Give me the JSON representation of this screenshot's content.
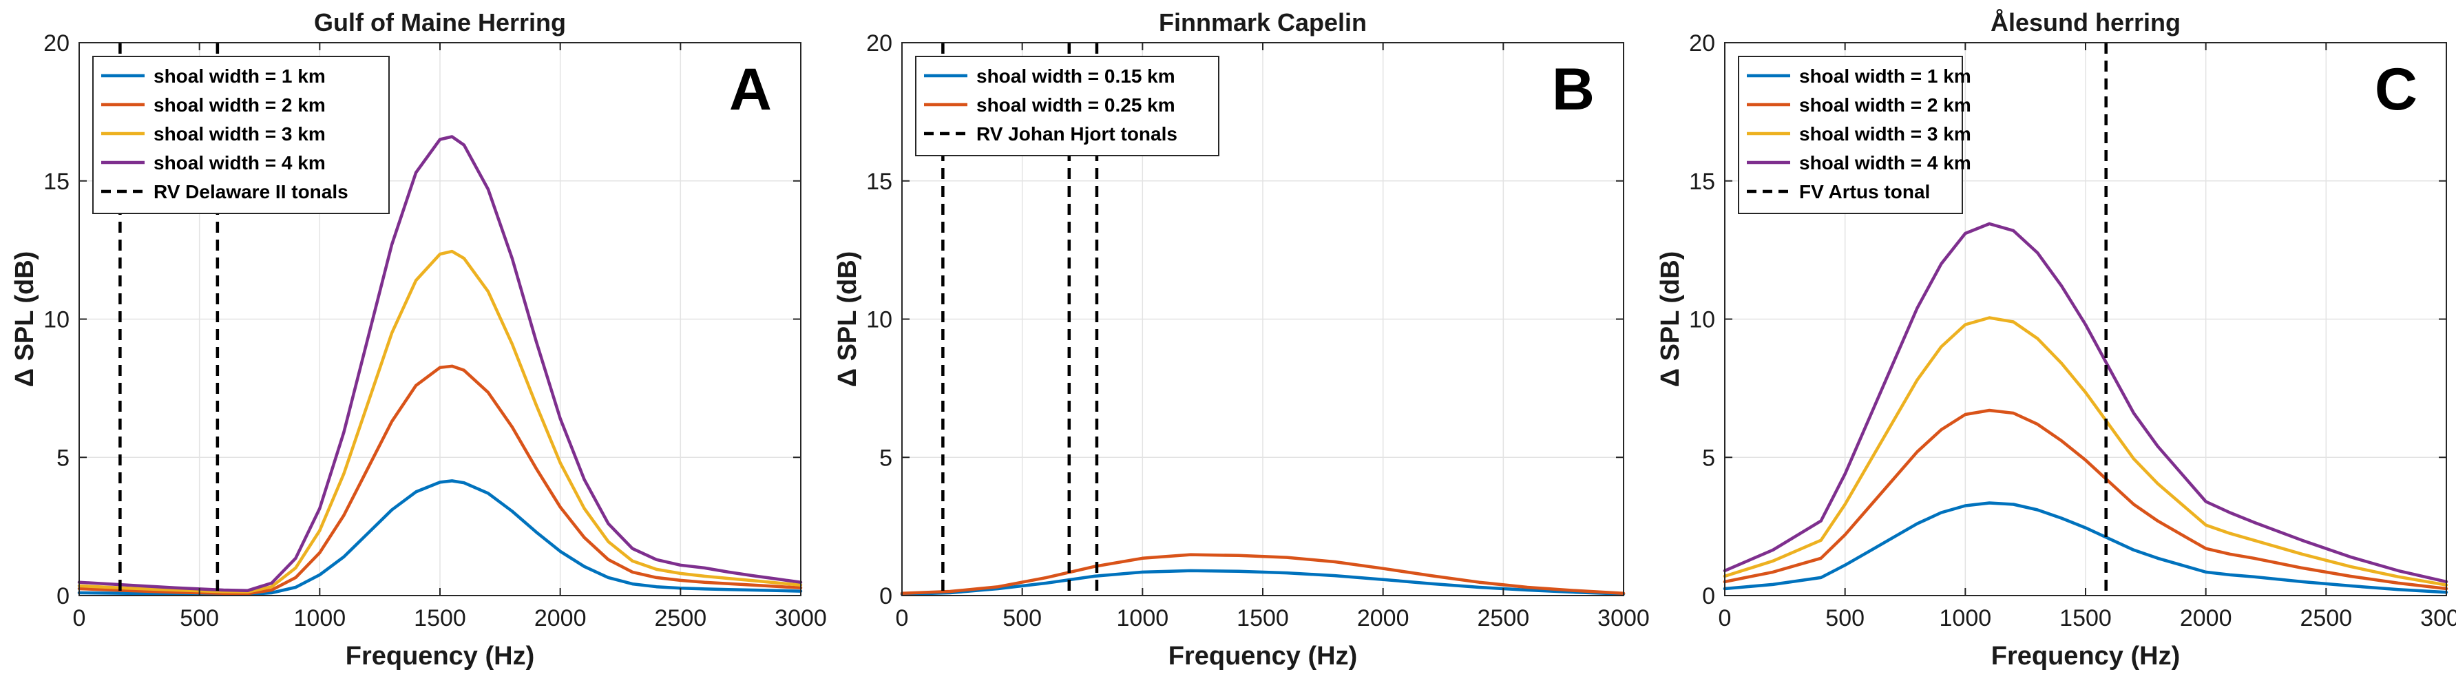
{
  "chart_data": [
    {
      "type": "line",
      "panel": "A",
      "title": "Gulf of Maine Herring",
      "xlabel": "Frequency (Hz)",
      "ylabel": "Δ SPL (dB)",
      "xlim": [
        0,
        3000
      ],
      "ylim": [
        0,
        20
      ],
      "xticks": [
        "0",
        "500",
        "1000",
        "1500",
        "2000",
        "2500",
        "3000"
      ],
      "yticks": [
        "0",
        "5",
        "10",
        "15",
        "20"
      ],
      "grid": true,
      "legend_position": "top-left",
      "vlines": {
        "label": "RV Delaware II tonals",
        "x": [
          170,
          575
        ]
      },
      "series": [
        {
          "name": "shoal width = 1 km",
          "color": "#0072BD",
          "x": [
            0,
            200,
            400,
            600,
            700,
            800,
            900,
            1000,
            1100,
            1200,
            1300,
            1400,
            1500,
            1550,
            1600,
            1700,
            1800,
            1900,
            2000,
            2100,
            2200,
            2300,
            2400,
            2500,
            2600,
            2700,
            2800,
            2900,
            3000
          ],
          "y": [
            0.1,
            0.08,
            0.06,
            0.04,
            0.04,
            0.1,
            0.3,
            0.75,
            1.4,
            2.25,
            3.1,
            3.75,
            4.1,
            4.15,
            4.08,
            3.7,
            3.05,
            2.3,
            1.6,
            1.05,
            0.65,
            0.42,
            0.32,
            0.27,
            0.24,
            0.22,
            0.2,
            0.18,
            0.16
          ]
        },
        {
          "name": "shoal width = 2 km",
          "color": "#D95319",
          "x": [
            0,
            200,
            400,
            600,
            700,
            800,
            900,
            1000,
            1100,
            1200,
            1300,
            1400,
            1500,
            1550,
            1600,
            1700,
            1800,
            1900,
            2000,
            2100,
            2200,
            2300,
            2400,
            2500,
            2600,
            2700,
            2800,
            2900,
            3000
          ],
          "y": [
            0.25,
            0.18,
            0.12,
            0.08,
            0.07,
            0.2,
            0.65,
            1.55,
            2.9,
            4.6,
            6.3,
            7.6,
            8.25,
            8.3,
            8.15,
            7.35,
            6.1,
            4.6,
            3.2,
            2.1,
            1.3,
            0.85,
            0.65,
            0.55,
            0.48,
            0.43,
            0.38,
            0.33,
            0.28
          ]
        },
        {
          "name": "shoal width = 3 km",
          "color": "#EDB120",
          "x": [
            0,
            200,
            400,
            600,
            700,
            800,
            900,
            1000,
            1100,
            1200,
            1300,
            1400,
            1500,
            1550,
            1600,
            1700,
            1800,
            1900,
            2000,
            2100,
            2200,
            2300,
            2400,
            2500,
            2600,
            2700,
            2800,
            2900,
            3000
          ],
          "y": [
            0.35,
            0.27,
            0.2,
            0.14,
            0.13,
            0.32,
            1.0,
            2.35,
            4.4,
            6.95,
            9.5,
            11.4,
            12.35,
            12.45,
            12.2,
            11.0,
            9.1,
            6.9,
            4.8,
            3.15,
            1.95,
            1.25,
            0.95,
            0.8,
            0.7,
            0.62,
            0.54,
            0.46,
            0.38
          ]
        },
        {
          "name": "shoal width = 4 km",
          "color": "#7E2F8E",
          "x": [
            0,
            200,
            400,
            600,
            700,
            800,
            900,
            1000,
            1100,
            1200,
            1300,
            1400,
            1500,
            1550,
            1600,
            1700,
            1800,
            1900,
            2000,
            2100,
            2200,
            2300,
            2400,
            2500,
            2600,
            2700,
            2800,
            2900,
            3000
          ],
          "y": [
            0.48,
            0.38,
            0.28,
            0.2,
            0.18,
            0.45,
            1.35,
            3.15,
            5.9,
            9.3,
            12.7,
            15.3,
            16.5,
            16.6,
            16.3,
            14.7,
            12.2,
            9.2,
            6.4,
            4.2,
            2.6,
            1.7,
            1.3,
            1.1,
            1.0,
            0.85,
            0.72,
            0.6,
            0.48
          ]
        }
      ]
    },
    {
      "type": "line",
      "panel": "B",
      "title": "Finnmark Capelin",
      "xlabel": "Frequency (Hz)",
      "ylabel": "Δ SPL (dB)",
      "xlim": [
        0,
        3000
      ],
      "ylim": [
        0,
        20
      ],
      "xticks": [
        "0",
        "500",
        "1000",
        "1500",
        "2000",
        "2500",
        "3000"
      ],
      "yticks": [
        "0",
        "5",
        "10",
        "15",
        "20"
      ],
      "grid": true,
      "legend_position": "top-left",
      "vlines": {
        "label": "RV Johan Hjort tonals",
        "x": [
          170,
          695,
          810
        ]
      },
      "series": [
        {
          "name": "shoal width = 0.15 km",
          "color": "#0072BD",
          "x": [
            0,
            200,
            400,
            600,
            800,
            1000,
            1200,
            1400,
            1600,
            1800,
            2000,
            2200,
            2400,
            2600,
            2800,
            3000
          ],
          "y": [
            0.05,
            0.1,
            0.25,
            0.45,
            0.7,
            0.85,
            0.9,
            0.88,
            0.82,
            0.72,
            0.58,
            0.43,
            0.3,
            0.2,
            0.12,
            0.06
          ]
        },
        {
          "name": "shoal width = 0.25 km",
          "color": "#D95319",
          "x": [
            0,
            200,
            400,
            600,
            800,
            1000,
            1200,
            1400,
            1600,
            1800,
            2000,
            2200,
            2400,
            2600,
            2800,
            3000
          ],
          "y": [
            0.08,
            0.15,
            0.32,
            0.65,
            1.05,
            1.35,
            1.48,
            1.45,
            1.38,
            1.22,
            0.98,
            0.72,
            0.48,
            0.3,
            0.18,
            0.08
          ]
        }
      ]
    },
    {
      "type": "line",
      "panel": "C",
      "title": "Ålesund herring",
      "xlabel": "Frequency (Hz)",
      "ylabel": "Δ SPL (dB)",
      "xlim": [
        0,
        3000
      ],
      "ylim": [
        0,
        20
      ],
      "xticks": [
        "0",
        "500",
        "1000",
        "1500",
        "2000",
        "2500",
        "3000"
      ],
      "yticks": [
        "0",
        "5",
        "10",
        "15",
        "20"
      ],
      "grid": true,
      "legend_position": "top-left",
      "vlines": {
        "label": "FV Artus tonal",
        "x": [
          1585
        ]
      },
      "series": [
        {
          "name": "shoal width = 1 km",
          "color": "#0072BD",
          "x": [
            0,
            200,
            400,
            500,
            600,
            700,
            800,
            900,
            1000,
            1100,
            1200,
            1300,
            1400,
            1500,
            1600,
            1700,
            1800,
            1900,
            2000,
            2100,
            2200,
            2400,
            2600,
            2800,
            3000
          ],
          "y": [
            0.25,
            0.4,
            0.65,
            1.1,
            1.6,
            2.1,
            2.6,
            3.0,
            3.25,
            3.35,
            3.3,
            3.1,
            2.8,
            2.45,
            2.05,
            1.65,
            1.35,
            1.1,
            0.85,
            0.75,
            0.68,
            0.5,
            0.35,
            0.22,
            0.12
          ]
        },
        {
          "name": "shoal width = 2 km",
          "color": "#D95319",
          "x": [
            0,
            200,
            400,
            500,
            600,
            700,
            800,
            900,
            1000,
            1100,
            1200,
            1300,
            1400,
            1500,
            1600,
            1700,
            1800,
            1900,
            2000,
            2100,
            2200,
            2400,
            2600,
            2800,
            3000
          ],
          "y": [
            0.5,
            0.85,
            1.35,
            2.2,
            3.2,
            4.2,
            5.2,
            6.0,
            6.55,
            6.7,
            6.6,
            6.2,
            5.6,
            4.9,
            4.1,
            3.3,
            2.7,
            2.2,
            1.7,
            1.5,
            1.35,
            1.0,
            0.7,
            0.45,
            0.25
          ]
        },
        {
          "name": "shoal width = 3 km",
          "color": "#EDB120",
          "x": [
            0,
            200,
            400,
            500,
            600,
            700,
            800,
            900,
            1000,
            1100,
            1200,
            1300,
            1400,
            1500,
            1600,
            1700,
            1800,
            1900,
            2000,
            2100,
            2200,
            2400,
            2600,
            2800,
            3000
          ],
          "y": [
            0.7,
            1.25,
            2.0,
            3.3,
            4.8,
            6.3,
            7.8,
            9.0,
            9.8,
            10.05,
            9.9,
            9.3,
            8.4,
            7.35,
            6.15,
            4.95,
            4.05,
            3.3,
            2.55,
            2.25,
            2.0,
            1.5,
            1.05,
            0.68,
            0.38
          ]
        },
        {
          "name": "shoal width = 4 km",
          "color": "#7E2F8E",
          "x": [
            0,
            200,
            400,
            500,
            600,
            700,
            800,
            900,
            1000,
            1100,
            1200,
            1300,
            1400,
            1500,
            1600,
            1700,
            1800,
            1900,
            2000,
            2100,
            2200,
            2400,
            2600,
            2800,
            3000
          ],
          "y": [
            0.9,
            1.65,
            2.7,
            4.4,
            6.4,
            8.4,
            10.4,
            12.0,
            13.1,
            13.45,
            13.2,
            12.4,
            11.2,
            9.8,
            8.2,
            6.6,
            5.4,
            4.4,
            3.4,
            3.0,
            2.65,
            2.0,
            1.4,
            0.9,
            0.5
          ]
        }
      ]
    }
  ]
}
